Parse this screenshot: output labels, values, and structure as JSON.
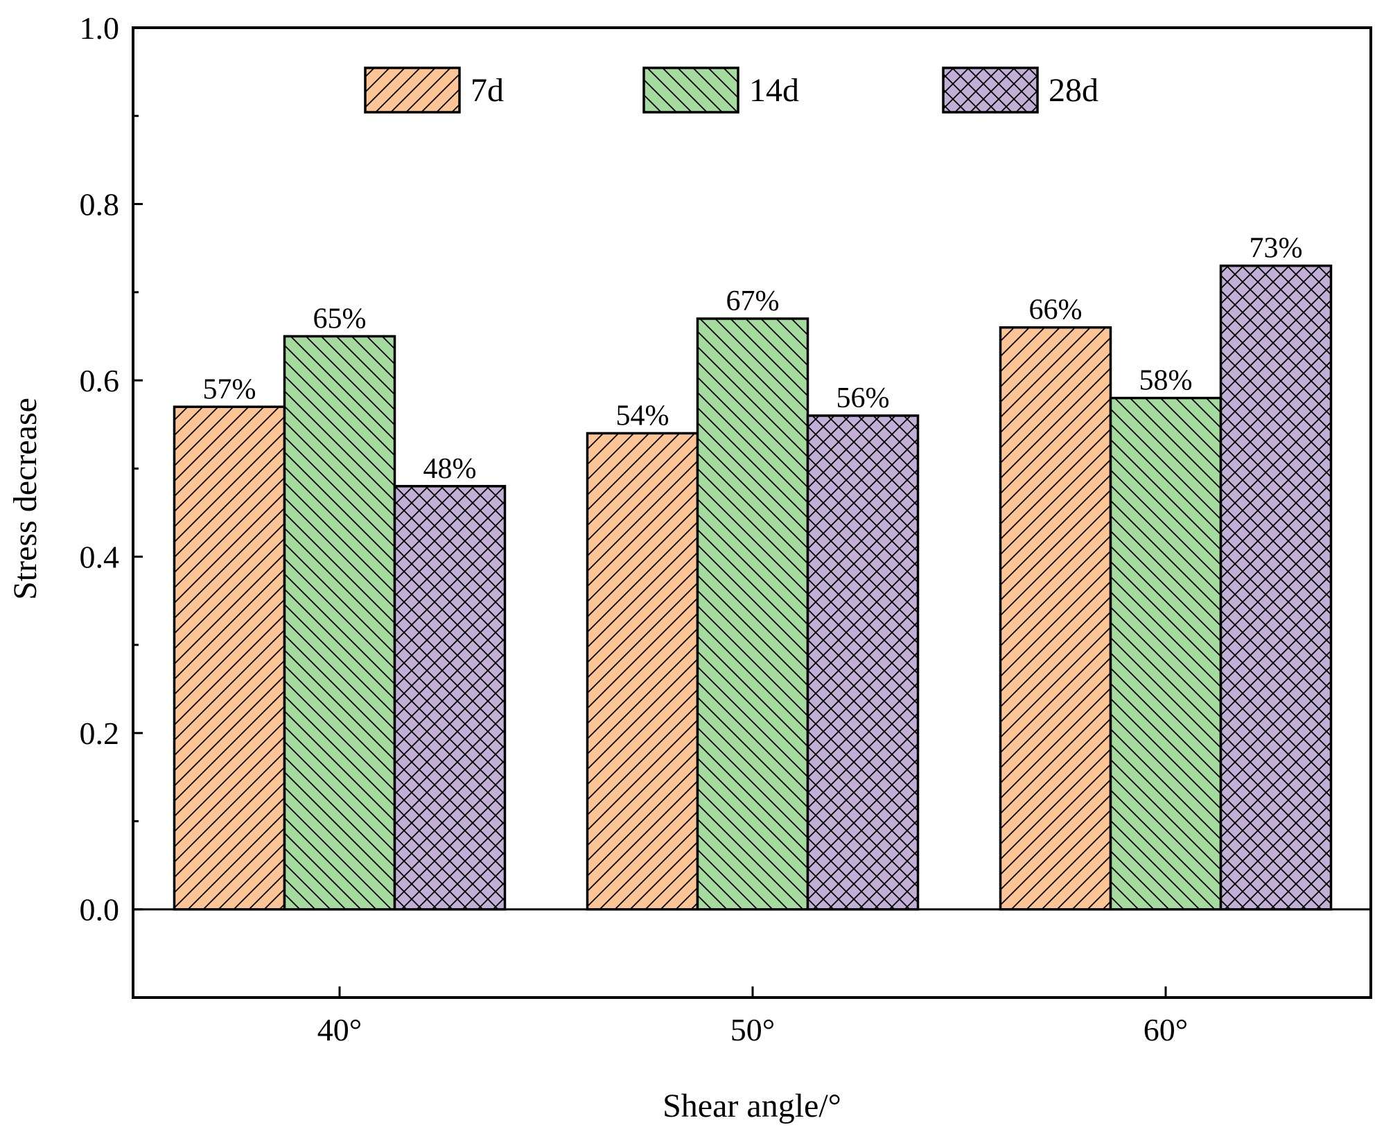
{
  "chart_data": {
    "type": "bar",
    "title": "",
    "xlabel": "Shear angle/°",
    "ylabel": "Stress decrease",
    "categories": [
      "40°",
      "50°",
      "60°"
    ],
    "ylim": [
      -0.1,
      1.0
    ],
    "yticks": [
      0.0,
      0.2,
      0.4,
      0.6,
      0.8,
      1.0
    ],
    "ytick_labels": [
      "0.0",
      "0.2",
      "0.4",
      "0.6",
      "0.8",
      "1.0"
    ],
    "legend_position": "top",
    "grid": false,
    "series": [
      {
        "name": "7d",
        "color": "#FDC596",
        "pattern": "forward-diagonal",
        "values": [
          0.57,
          0.54,
          0.66
        ],
        "labels": [
          "57%",
          "54%",
          "66%"
        ]
      },
      {
        "name": "14d",
        "color": "#A6DBA0",
        "pattern": "backward-diagonal",
        "values": [
          0.65,
          0.67,
          0.58
        ],
        "labels": [
          "65%",
          "67%",
          "58%"
        ]
      },
      {
        "name": "28d",
        "color": "#C2AFD6",
        "pattern": "cross-hatch",
        "values": [
          0.48,
          0.56,
          0.73
        ],
        "labels": [
          "48%",
          "56%",
          "73%"
        ]
      }
    ]
  }
}
